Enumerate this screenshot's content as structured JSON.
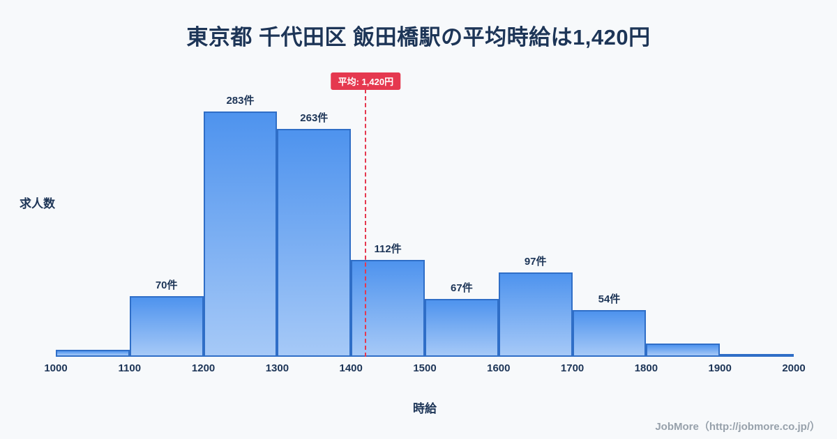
{
  "title": "東京都 千代田区 飯田橋駅の平均時給は1,420円",
  "footer": "JobMore（http://jobmore.co.jp/）",
  "chart_data": {
    "type": "bar",
    "title": "東京都 千代田区 飯田橋駅の平均時給は1,420円",
    "xlabel": "時給",
    "ylabel": "求人数",
    "x_ticks": [
      "1000",
      "1100",
      "1200",
      "1300",
      "1400",
      "1500",
      "1600",
      "1700",
      "1800",
      "1900",
      "2000"
    ],
    "bin_edges": [
      1000,
      1100,
      1200,
      1300,
      1400,
      1500,
      1600,
      1700,
      1800,
      1900,
      2000
    ],
    "values": [
      8,
      70,
      283,
      263,
      112,
      67,
      97,
      54,
      15,
      3
    ],
    "labels": [
      "",
      "70件",
      "283件",
      "263件",
      "112件",
      "67件",
      "97件",
      "54件",
      "",
      ""
    ],
    "ylim": [
      0,
      307
    ],
    "grid": false,
    "legend": false,
    "average": {
      "value": 1420,
      "label": "平均: 1,420円"
    },
    "axis_range_x": [
      1000,
      2000
    ],
    "colors": {
      "background": "#f7f9fb",
      "title_color": "#1d3557",
      "bar_top": "#4e93ee",
      "bar_bottom": "#a6c9f7",
      "bar_border": "#2f6ec7",
      "average_line": "#e5384f",
      "badge_text": "#ffffff"
    }
  }
}
